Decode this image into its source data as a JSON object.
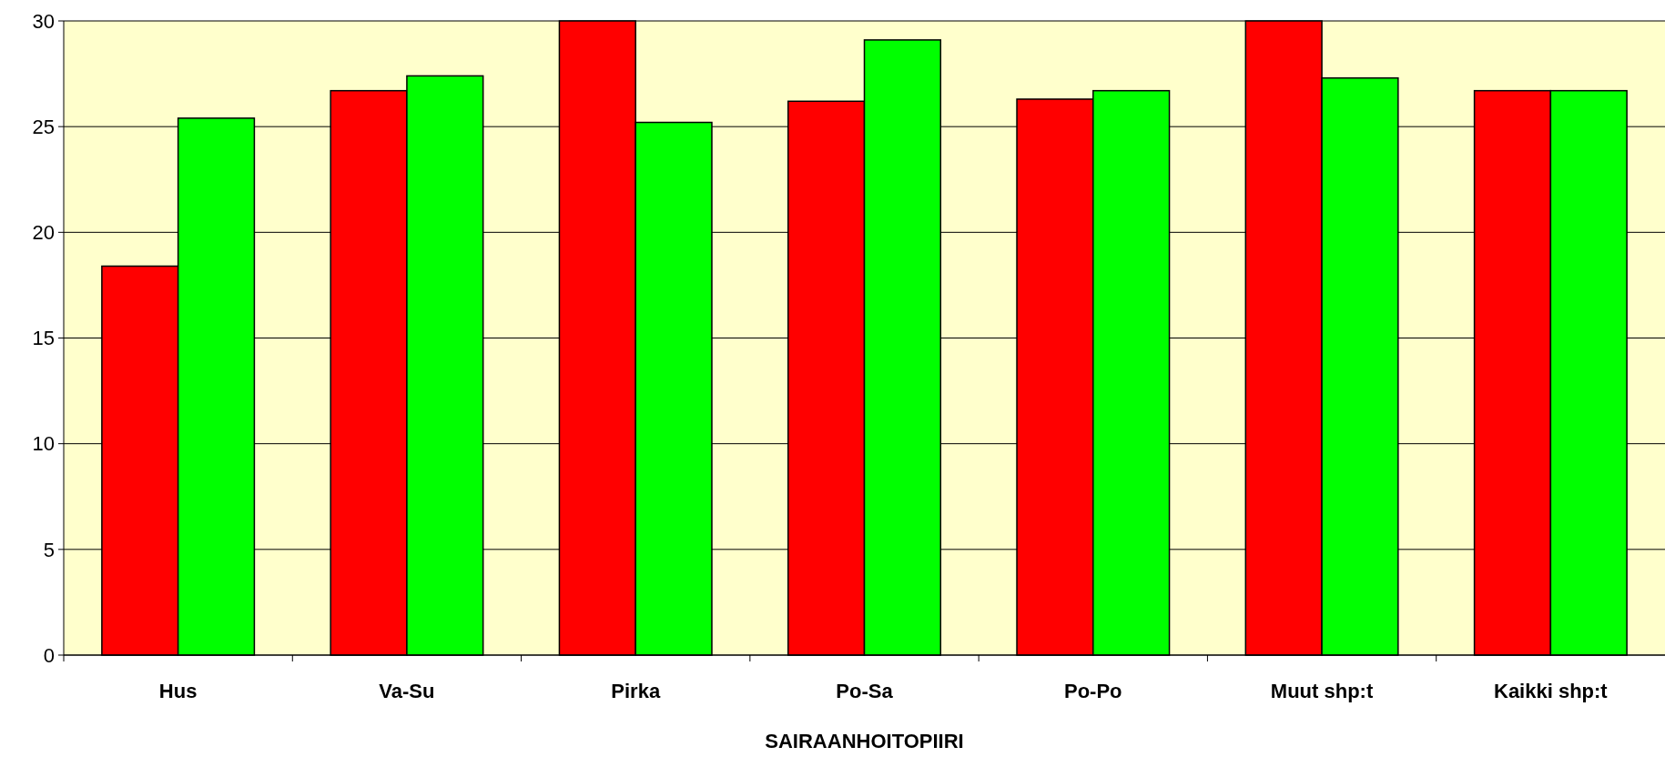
{
  "chart_data": {
    "type": "bar",
    "xlabel": "SAIRAANHOITOPIIRI",
    "categories": [
      "Hus",
      "Va-Su",
      "Pirka",
      "Po-Sa",
      "Po-Po",
      "Muut shp:t",
      "Kaikki shp:t"
    ],
    "series": [
      {
        "color": "#ff0000",
        "values": [
          18.4,
          26.7,
          30,
          26.2,
          26.3,
          30,
          26.7
        ]
      },
      {
        "color": "#00ff00",
        "values": [
          25.4,
          27.4,
          25.2,
          29.1,
          26.7,
          27.3,
          26.7
        ]
      }
    ],
    "ylim": [
      0,
      30
    ],
    "yticks": [
      0,
      5,
      10,
      15,
      20,
      25,
      30
    ],
    "grid": "y"
  }
}
